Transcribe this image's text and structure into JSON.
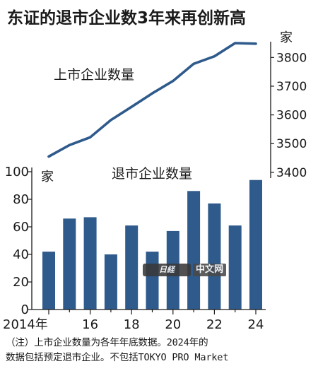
{
  "title": "东证的退市企业数3年来再创新高",
  "chart_data": [
    {
      "type": "line",
      "series": [
        {
          "name": "上市企业数量",
          "x": [
            2014,
            2015,
            2016,
            2017,
            2018,
            2019,
            2020,
            2021,
            2022,
            2023,
            2024
          ],
          "values": [
            3455,
            3495,
            3522,
            3582,
            3628,
            3675,
            3718,
            3778,
            3804,
            3850,
            3848
          ]
        }
      ],
      "unit": "家",
      "ylim": [
        3380,
        3850
      ],
      "yticks": [
        "3400",
        "3500",
        "3600",
        "3700",
        "3800"
      ],
      "axis_side": "right"
    },
    {
      "type": "bar",
      "series": [
        {
          "name": "退市企业数量",
          "values": [
            42,
            66,
            67,
            40,
            61,
            42,
            57,
            86,
            77,
            61,
            94
          ]
        }
      ],
      "categories": [
        2014,
        2015,
        2016,
        2017,
        2018,
        2019,
        2020,
        2021,
        2022,
        2023,
        2024
      ],
      "xticks": [
        "2014年",
        "16",
        "18",
        "20",
        "22",
        "24"
      ],
      "unit": "家",
      "ylim": [
        0,
        100
      ],
      "yticks": [
        "0",
        "20",
        "40",
        "60",
        "80",
        "100"
      ],
      "color": "#2f5a8c"
    }
  ],
  "note": {
    "line1": "（注）上市企业数量为各年年底数据。2024年的",
    "line2": "数据包括预定退市企业。不包括TOKYO PRO Market"
  },
  "watermark": {
    "logo": "日経",
    "text": "中文网"
  }
}
